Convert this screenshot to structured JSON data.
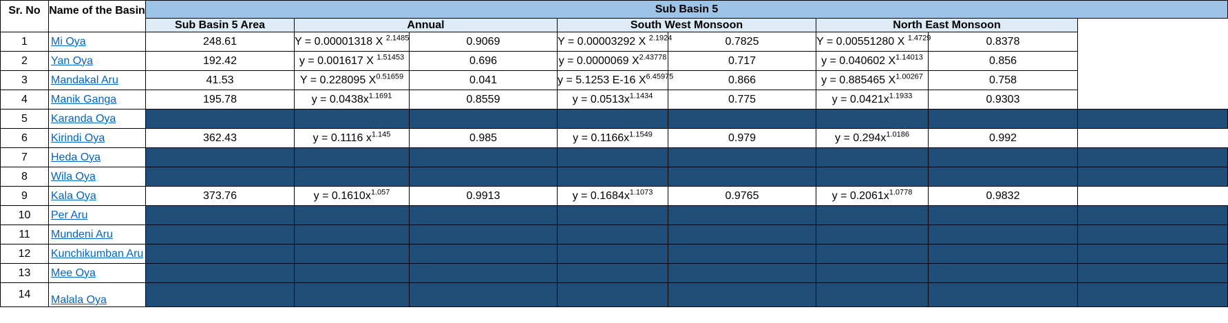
{
  "headers": {
    "sr_no": "Sr. No",
    "name": "Name of the Basin",
    "group": "Sub Basin 5",
    "area": "Sub Basin 5 Area",
    "annual": "Annual",
    "swm": "South West Monsoon",
    "nem": "North East Monsoon"
  },
  "colors": {
    "shade": "#1f4e79",
    "header_blue": "#9dc3e6",
    "header_light": "#ddebf7",
    "link": "#0563c1"
  },
  "rows": [
    {
      "sr": "1",
      "name": "Mi Oya",
      "area": "248.61",
      "a_base": "Y = 0.00001318 X ",
      "a_exp": "2.1485",
      "a_r": "0.9069",
      "s_base": "Y = 0.00003292 X ",
      "s_exp": "2.1924",
      "s_r": "0.7825",
      "n_base": "Y = 0.00551280 X ",
      "n_exp": "1.4729",
      "n_r": "0.8378"
    },
    {
      "sr": "2",
      "name": "Yan Oya",
      "area": "192.42",
      "a_base": "y = 0.001617 X ",
      "a_exp": "1.51453",
      "a_r": "0.696",
      "s_base": "y = 0.0000069 X",
      "s_exp": "2.43778",
      "s_r": "0.717",
      "n_base": "y = 0.040602 X",
      "n_exp": "1.14013",
      "n_r": "0.856"
    },
    {
      "sr": "3",
      "name": "Mandakal Aru",
      "area": "41.53",
      "a_base": "Y = 0.228095 X",
      "a_exp": "0.51659",
      "a_r": "0.041",
      "s_base": "y = 5.1253 E-16 X",
      "s_exp": "6.45975",
      "s_r": "0.866",
      "n_base": "y = 0.885465 X",
      "n_exp": "1.00267",
      "n_r": "0.758"
    },
    {
      "sr": "4",
      "name": "Manik Ganga",
      "area": "195.78",
      "a_base": "y = 0.0438x",
      "a_exp": "1.1691",
      "a_r": "0.8559",
      "s_base": "y = 0.0513x",
      "s_exp": "1.1434",
      "s_r": "0.775",
      "n_base": "y = 0.0421x",
      "n_exp": "1.1933",
      "n_r": "0.9303"
    },
    {
      "sr": "5",
      "name": "Karanda Oya",
      "shaded": true
    },
    {
      "sr": "6",
      "name": "Kirindi Oya",
      "area": "362.43",
      "a_base": "y = 0.1116 x",
      "a_exp": "1.145",
      "a_r": "0.985",
      "s_base": "y = 0.1166x",
      "s_exp": "1.1549",
      "s_r": "0.979",
      "n_base": "y = 0.294x",
      "n_exp": "1.0186",
      "n_r": "0.992"
    },
    {
      "sr": "7",
      "name": "Heda Oya",
      "shaded": true
    },
    {
      "sr": "8",
      "name": "Wila Oya",
      "shaded": true
    },
    {
      "sr": "9",
      "name": "Kala Oya",
      "area": "373.76",
      "a_base": "y = 0.1610x",
      "a_exp": "1.057",
      "a_r": "0.9913",
      "s_base": "y = 0.1684x",
      "s_exp": "1.1073",
      "s_r": "0.9765",
      "n_base": "y = 0.2061x",
      "n_exp": "1.0778",
      "n_r": "0.9832"
    },
    {
      "sr": "10",
      "name": "Per Aru",
      "shaded": true
    },
    {
      "sr": "11",
      "name": "Mundeni Aru",
      "shaded": true
    },
    {
      "sr": "12",
      "name": "Kunchikumban Aru",
      "shaded": true
    },
    {
      "sr": "13",
      "name": "Mee Oya",
      "shaded": true
    },
    {
      "sr": "14",
      "name": "Malala Oya",
      "shaded": true
    }
  ]
}
